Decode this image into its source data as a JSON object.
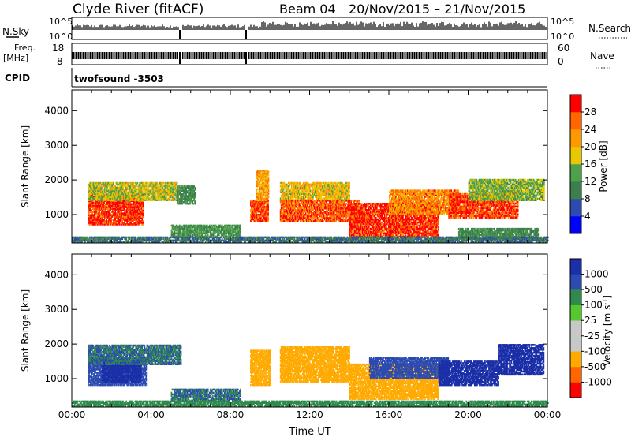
{
  "header": {
    "station": "Clyde River (fitACF)",
    "beam": "Beam 04",
    "date_range": "20/Nov/2015 – 21/Nov/2015"
  },
  "panels": {
    "nsky": {
      "left_label": "N.Sky",
      "right_label": "N.Search",
      "left_ticks": [
        "10^5",
        "10^0"
      ],
      "right_ticks": [
        "10^5",
        "10^0"
      ]
    },
    "freq": {
      "left_label_line1": "Freq.",
      "left_label_line2": "[MHz]",
      "left_ticks": [
        "18",
        "8"
      ],
      "right_label": "Nave",
      "right_ticks": [
        "60",
        "0"
      ]
    },
    "cpid": {
      "label": "CPID",
      "value": "twofsound -3503"
    }
  },
  "colors": {
    "power_scale": [
      "#0000ff",
      "#2c4bb0",
      "#3d7f4c",
      "#4fa04a",
      "#e8c800",
      "#ff9900",
      "#ff6600",
      "#ff0000"
    ],
    "velocity_scale": [
      "#ff0000",
      "#ff6600",
      "#ffaa00",
      "#c8c8c8",
      "#c8c8c8",
      "#55c830",
      "#2f8a4c",
      "#2c4bb0",
      "#1b2fa8"
    ]
  },
  "chart_data": [
    {
      "type": "heatmap",
      "name": "power",
      "ylabel": "Slant Range [km]",
      "yticks": [
        "1000",
        "2000",
        "3000",
        "4000"
      ],
      "ylim": [
        180,
        4600
      ],
      "xlim": [
        0,
        24
      ],
      "xticks": [
        "00:00",
        "04:00",
        "08:00",
        "12:00",
        "16:00",
        "20:00",
        "00:00"
      ],
      "colorbar": {
        "label": "Power [dB]",
        "ticks": [
          "4",
          "8",
          "12",
          "16",
          "20",
          "24",
          "28"
        ],
        "range": [
          0,
          30
        ]
      },
      "regions": [
        {
          "t0": 0.8,
          "t1": 3.6,
          "r0": 700,
          "r1": 1600,
          "value": 28
        },
        {
          "t0": 0.8,
          "t1": 5.3,
          "r0": 1400,
          "r1": 1900,
          "value": 16
        },
        {
          "t0": 5.3,
          "t1": 6.2,
          "r0": 1300,
          "r1": 1800,
          "value": 10
        },
        {
          "t0": 5.0,
          "t1": 8.5,
          "r0": 350,
          "r1": 700,
          "value": 12
        },
        {
          "t0": 9.0,
          "t1": 9.9,
          "r0": 800,
          "r1": 1400,
          "value": 26
        },
        {
          "t0": 9.3,
          "t1": 9.9,
          "r0": 1400,
          "r1": 2300,
          "value": 20
        },
        {
          "t0": 10.5,
          "t1": 14.0,
          "r0": 1400,
          "r1": 1900,
          "value": 18
        },
        {
          "t0": 10.5,
          "t1": 14.5,
          "r0": 800,
          "r1": 1400,
          "value": 25
        },
        {
          "t0": 14.0,
          "t1": 18.5,
          "r0": 350,
          "r1": 1300,
          "value": 28
        },
        {
          "t0": 16.0,
          "t1": 19.5,
          "r0": 1000,
          "r1": 1700,
          "value": 22
        },
        {
          "t0": 19.0,
          "t1": 22.5,
          "r0": 900,
          "r1": 1600,
          "value": 27
        },
        {
          "t0": 20.0,
          "t1": 23.8,
          "r0": 1400,
          "r1": 2000,
          "value": 14
        },
        {
          "t0": 19.5,
          "t1": 23.5,
          "r0": 300,
          "r1": 600,
          "value": 10
        },
        {
          "t0": 0.0,
          "t1": 24.0,
          "r0": 190,
          "r1": 330,
          "value": 8
        }
      ]
    },
    {
      "type": "heatmap",
      "name": "velocity",
      "ylabel": "Slant Range [km]",
      "yticks": [
        "1000",
        "2000",
        "3000",
        "4000"
      ],
      "ylim": [
        180,
        4600
      ],
      "xlim": [
        0,
        24
      ],
      "xticks": [
        "00:00",
        "04:00",
        "08:00",
        "12:00",
        "16:00",
        "20:00",
        "00:00"
      ],
      "xlabel": "Time UT",
      "colorbar": {
        "label": "Velocity [m s^-1]",
        "ticks": [
          "-1000",
          "-500",
          "-100",
          "-25",
          "25",
          "100",
          "500",
          "1000"
        ]
      },
      "regions": [
        {
          "t0": 0.8,
          "t1": 3.8,
          "r0": 800,
          "r1": 1600,
          "value": 150
        },
        {
          "t0": 1.5,
          "t1": 3.5,
          "r0": 900,
          "r1": 1500,
          "value": 700
        },
        {
          "t0": 0.8,
          "t1": 5.5,
          "r0": 1400,
          "r1": 1950,
          "value": 100
        },
        {
          "t0": 5.0,
          "t1": 8.5,
          "r0": 350,
          "r1": 700,
          "value": 100
        },
        {
          "t0": 9.0,
          "t1": 10.0,
          "r0": 800,
          "r1": 1800,
          "value": -300
        },
        {
          "t0": 10.5,
          "t1": 14.0,
          "r0": 900,
          "r1": 1900,
          "value": -300
        },
        {
          "t0": 14.0,
          "t1": 18.5,
          "r0": 400,
          "r1": 1400,
          "value": -200
        },
        {
          "t0": 15.0,
          "t1": 19.0,
          "r0": 1000,
          "r1": 1600,
          "value": 150
        },
        {
          "t0": 18.5,
          "t1": 21.5,
          "r0": 800,
          "r1": 1500,
          "value": 800
        },
        {
          "t0": 21.5,
          "t1": 23.8,
          "r0": 1100,
          "r1": 2000,
          "value": 900
        },
        {
          "t0": 0.0,
          "t1": 24.0,
          "r0": 190,
          "r1": 330,
          "value": 50
        }
      ]
    }
  ]
}
